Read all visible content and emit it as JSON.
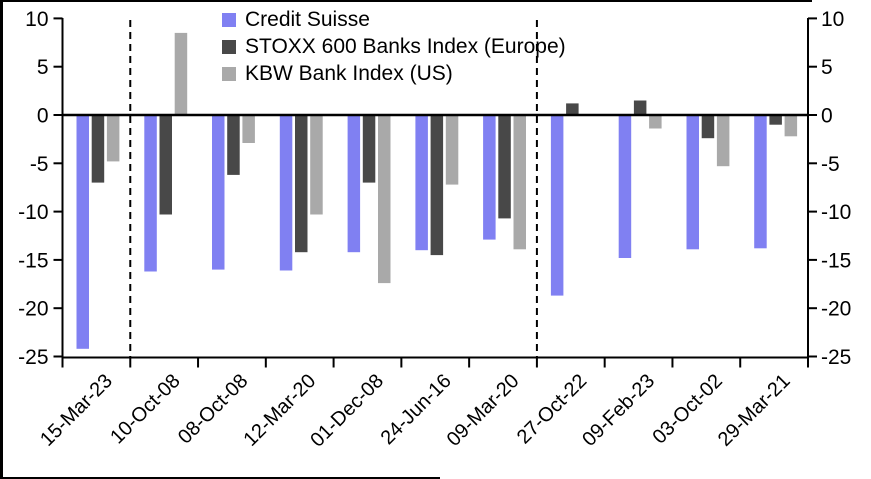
{
  "chart_data": {
    "type": "bar",
    "title": "",
    "xlabel": "",
    "ylabel": "",
    "categories": [
      "15-Mar-23",
      "10-Oct-08",
      "08-Oct-08",
      "12-Mar-20",
      "01-Dec-08",
      "24-Jun-16",
      "09-Mar-20",
      "27-Oct-22",
      "09-Feb-23",
      "03-Oct-02",
      "29-Mar-21"
    ],
    "series": [
      {
        "name": "Credit Suisse",
        "color": "#8080f2",
        "values": [
          -24.2,
          -16.2,
          -16.0,
          -16.1,
          -14.2,
          -14.0,
          -12.9,
          -18.7,
          -14.8,
          -13.9,
          -13.8
        ]
      },
      {
        "name": "STOXX 600 Banks Index (Europe)",
        "color": "#484848",
        "values": [
          -7.0,
          -10.3,
          -6.2,
          -14.2,
          -7.0,
          -14.5,
          -10.7,
          1.2,
          1.5,
          -2.4,
          -1.0
        ]
      },
      {
        "name": "KBW Bank Index (US)",
        "color": "#a9a9a9",
        "values": [
          -4.8,
          8.5,
          -2.9,
          -10.3,
          -17.4,
          -7.2,
          -13.9,
          0.0,
          -1.4,
          -5.3,
          -2.2
        ]
      }
    ],
    "ylim": [
      -25,
      10
    ],
    "yticks": [
      10,
      5,
      0,
      -5,
      -10,
      -15,
      -20,
      -25
    ],
    "y_axis_left": true,
    "y_axis_right": true,
    "grid": false,
    "legend_position": "top-center",
    "separators_after_category_index": [
      0,
      6
    ],
    "bar_colors_note": {
      "accent_blue": "#8080f2",
      "dark_gray": "#484848",
      "light_gray": "#a9a9a9"
    }
  }
}
